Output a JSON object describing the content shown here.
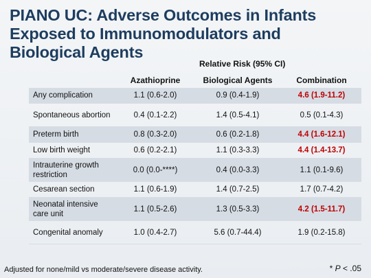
{
  "title": "PIANO UC: Adverse Outcomes in Infants Exposed to Immunomodulators and Biological Agents",
  "relative_risk_header": "Relative Risk (95% CI)",
  "columns": [
    "",
    "Azathioprine",
    "Biological Agents",
    "Combination"
  ],
  "rows": [
    {
      "label": "Any complication",
      "aza": "1.1 (0.6-2.0)",
      "bio": "0.9 (0.4-1.9)",
      "combo": "4.6 (1.9-11.2)",
      "combo_significant": true
    },
    {
      "label": "Spontaneous abortion",
      "aza": "0.4 (0.1-2.2)",
      "bio": "1.4 (0.5-4.1)",
      "combo": "0.5 (0.1-4.3)",
      "combo_significant": false
    },
    {
      "label": "Preterm birth",
      "aza": "0.8 (0.3-2.0)",
      "bio": "0.6 (0.2-1.8)",
      "combo": "4.4 (1.6-12.1)",
      "combo_significant": true
    },
    {
      "label": "Low birth weight",
      "aza": "0.6 (0.2-2.1)",
      "bio": "1.1 (0.3-3.3)",
      "combo": "4.4 (1.4-13.7)",
      "combo_significant": true
    },
    {
      "label": "Intrauterine growth restriction",
      "aza": "0.0 (0.0-****)",
      "bio": "0.4 (0.0-3.3)",
      "combo": "1.1 (0.1-9.6)",
      "combo_significant": false
    },
    {
      "label": "Cesarean section",
      "aza": "1.1 (0.6-1.9)",
      "bio": "1.4 (0.7-2.5)",
      "combo": "1.7 (0.7-4.2)",
      "combo_significant": false
    },
    {
      "label": "Neonatal intensive care unit",
      "aza": "1.1 (0.5-2.6)",
      "bio": "1.3 (0.5-3.3)",
      "combo": "4.2 (1.5-11.7)",
      "combo_significant": true
    },
    {
      "label": "Congenital anomaly",
      "aza": "1.0 (0.4-2.7)",
      "bio": "5.6 (0.7-44.4)",
      "combo": "1.9 (0.2-15.8)",
      "combo_significant": false
    }
  ],
  "footnote": "Adjusted for none/mild vs moderate/severe disease activity.",
  "p_note": {
    "symbol": "*",
    "p": "P",
    "rest": "< .05"
  },
  "colors": {
    "title": "#1d3d5f",
    "significant": "#c00000",
    "shaded_row": "#d5dce4"
  }
}
